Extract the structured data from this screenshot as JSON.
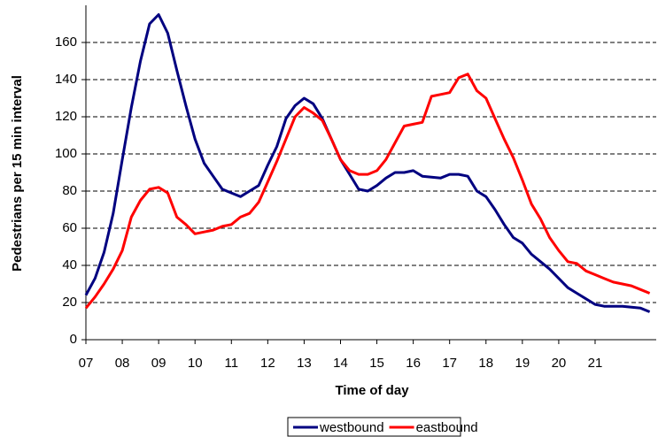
{
  "chart_data": {
    "type": "line",
    "x_label": "Time of day",
    "y_label": "Pedestrians per 15 min interval",
    "x": [
      7,
      7.25,
      7.5,
      7.75,
      8,
      8.25,
      8.5,
      8.75,
      9,
      9.25,
      9.5,
      9.75,
      10,
      10.25,
      10.5,
      10.75,
      11,
      11.25,
      11.5,
      11.75,
      12,
      12.25,
      12.5,
      12.75,
      13,
      13.25,
      13.5,
      13.75,
      14,
      14.25,
      14.5,
      14.75,
      15,
      15.25,
      15.5,
      15.75,
      16,
      16.25,
      16.5,
      16.75,
      17,
      17.25,
      17.5,
      17.75,
      18,
      18.25,
      18.5,
      18.75,
      19,
      19.25,
      19.5,
      19.75,
      20,
      20.25,
      20.5,
      20.75,
      21,
      21.25,
      21.5,
      21.75,
      22,
      22.25,
      22.5
    ],
    "series": [
      {
        "name": "westbound",
        "color": "#000080",
        "values": [
          24,
          33,
          47,
          68,
          97,
          125,
          150,
          170,
          175,
          165,
          145,
          126,
          108,
          95,
          88,
          81,
          79,
          77,
          80,
          83,
          94,
          104,
          119,
          126,
          130,
          127,
          119,
          108,
          97,
          89,
          81,
          80,
          83,
          87,
          90,
          90,
          91,
          88,
          87.5,
          87,
          89,
          89,
          88,
          80,
          77,
          70,
          62,
          55,
          52,
          46,
          42,
          38,
          33,
          28,
          25,
          22,
          19,
          18,
          18,
          18,
          17.5,
          17,
          15
        ]
      },
      {
        "name": "eastbound",
        "color": "#ff0000",
        "values": [
          17,
          23,
          30,
          38,
          48,
          66,
          75,
          81,
          82,
          79,
          66,
          62,
          57,
          58,
          59,
          61,
          62,
          66,
          68,
          74,
          85,
          96,
          108,
          120,
          125,
          122,
          118,
          108,
          97,
          91,
          89,
          89,
          91,
          97,
          106,
          115,
          116,
          117,
          131,
          132,
          133,
          141,
          143,
          134,
          130,
          119,
          108,
          98,
          86,
          73,
          65,
          55,
          48,
          42,
          41,
          37,
          35,
          33,
          31,
          30,
          29,
          27,
          25
        ]
      }
    ],
    "xlim": [
      7,
      22.7
    ],
    "xticks": [
      {
        "value": 7,
        "label": "07"
      },
      {
        "value": 8,
        "label": "08"
      },
      {
        "value": 9,
        "label": "09"
      },
      10,
      11,
      12,
      13,
      14,
      15,
      16,
      17,
      18,
      19,
      20,
      21
    ],
    "ylim": [
      0,
      180
    ],
    "yticks": [
      0,
      20,
      40,
      60,
      80,
      100,
      120,
      140,
      160
    ],
    "grid": true,
    "legend": "bottom"
  }
}
